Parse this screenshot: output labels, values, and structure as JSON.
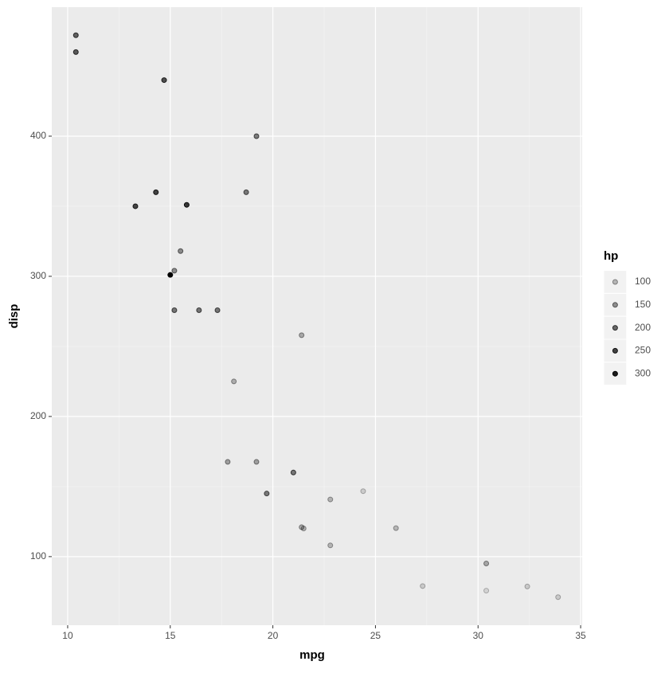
{
  "chart_data": {
    "type": "scatter",
    "x_label": "mpg",
    "y_label": "disp",
    "x": [
      21.0,
      21.0,
      22.8,
      21.4,
      18.7,
      18.1,
      14.3,
      24.4,
      22.8,
      19.2,
      17.8,
      16.4,
      17.3,
      15.2,
      10.4,
      10.4,
      14.7,
      32.4,
      30.4,
      33.9,
      21.5,
      15.5,
      15.2,
      13.3,
      19.2,
      27.3,
      26.0,
      30.4,
      15.8,
      19.7,
      15.0,
      21.4
    ],
    "y": [
      160,
      160,
      108,
      258,
      360,
      225,
      360,
      146.7,
      140.8,
      167.6,
      167.6,
      275.8,
      275.8,
      275.8,
      472,
      460,
      440,
      78.7,
      75.7,
      71.1,
      120.1,
      318,
      304,
      350,
      400,
      79,
      120.3,
      95.1,
      351,
      145,
      301,
      121
    ],
    "hp": [
      110,
      110,
      93,
      110,
      175,
      105,
      245,
      62,
      95,
      123,
      123,
      180,
      180,
      180,
      205,
      215,
      230,
      66,
      52,
      65,
      97,
      150,
      150,
      245,
      175,
      66,
      91,
      113,
      264,
      175,
      335,
      109
    ],
    "color": "#000000",
    "xlim": [
      9.225,
      35.075
    ],
    "ylim": [
      51.055,
      492.045
    ],
    "xticks": [
      10,
      15,
      20,
      25,
      30,
      35
    ],
    "yticks": [
      100,
      200,
      300,
      400
    ],
    "grid": true,
    "legend": {
      "title": "hp",
      "position": "right",
      "values": [
        100,
        150,
        200,
        250,
        300
      ]
    }
  }
}
